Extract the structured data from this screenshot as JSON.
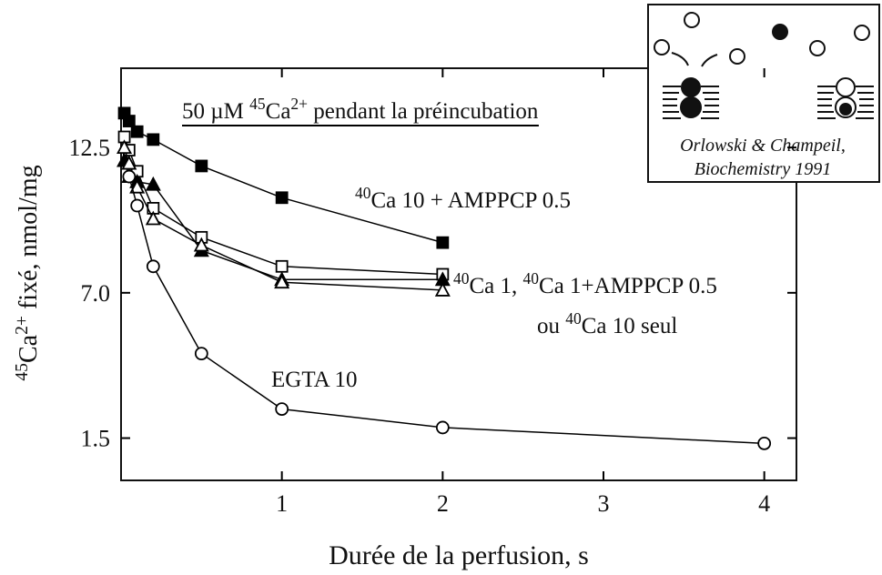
{
  "chart_data": {
    "type": "line",
    "x_label": "Durée de la perfusion, s",
    "y_label_parts": [
      {
        "text": "45",
        "sup": true
      },
      {
        "text": "Ca"
      },
      {
        "text": "2+",
        "sup": true
      },
      {
        "text": " fixé, nmol/mg"
      }
    ],
    "xlim": [
      0,
      4.2
    ],
    "ylim": [
      -0.1,
      15.5
    ],
    "xticks": [
      1,
      2,
      3,
      4
    ],
    "yticks": [
      1.5,
      {
        "value": 7,
        "label": "7.0"
      },
      12.5
    ],
    "color": "#000000",
    "series": [
      {
        "marker": "square",
        "filled": true,
        "x": [
          0.02,
          0.05,
          0.1,
          0.2,
          0.5,
          1,
          2
        ],
        "values": [
          13.8,
          13.5,
          13.1,
          12.8,
          11.8,
          10.6,
          8.9
        ]
      },
      {
        "marker": "square",
        "filled": false,
        "x": [
          0.02,
          0.05,
          0.1,
          0.2,
          0.5,
          1,
          2
        ],
        "values": [
          12.9,
          12.4,
          11.6,
          10.2,
          9.1,
          8.0,
          7.7
        ]
      },
      {
        "marker": "triangle",
        "filled": true,
        "x": [
          0.02,
          0.05,
          0.1,
          0.2,
          0.5,
          1,
          2
        ],
        "values": [
          12.0,
          11.4,
          11.2,
          11.1,
          8.6,
          7.5,
          7.5
        ]
      },
      {
        "marker": "triangle",
        "filled": false,
        "x": [
          0.02,
          0.05,
          0.1,
          0.2,
          0.5,
          1,
          2
        ],
        "values": [
          12.5,
          11.9,
          11.0,
          9.8,
          8.8,
          7.4,
          7.1
        ]
      },
      {
        "marker": "circle",
        "filled": false,
        "x": [
          0.05,
          0.1,
          0.2,
          0.5,
          1,
          2,
          4
        ],
        "values": [
          11.4,
          10.3,
          8.0,
          4.7,
          2.6,
          1.9,
          1.3
        ]
      }
    ],
    "annotations": [
      {
        "underline": true,
        "parts": [
          {
            "text": "50 µM "
          },
          {
            "text": "45",
            "sup": true
          },
          {
            "text": "Ca"
          },
          {
            "text": "2+",
            "sup": true
          },
          {
            "text": " pendant la préincubation"
          }
        ]
      },
      {
        "parts": [
          {
            "text": "40",
            "sup": true
          },
          {
            "text": "Ca 10 + AMPPCP 0.5"
          }
        ]
      },
      {
        "parts": [
          {
            "text": "40",
            "sup": true
          },
          {
            "text": "Ca 1, "
          },
          {
            "text": "40",
            "sup": true
          },
          {
            "text": "Ca 1+AMPPCP 0.5"
          }
        ]
      },
      {
        "parts": [
          {
            "text": "ou  "
          },
          {
            "text": "40",
            "sup": true
          },
          {
            "text": "Ca 10 seul"
          }
        ]
      },
      {
        "parts": [
          {
            "text": "EGTA 10"
          }
        ]
      }
    ],
    "inset_caption": [
      "Orlowski & Champeil,",
      "Biochemistry 1991"
    ]
  }
}
